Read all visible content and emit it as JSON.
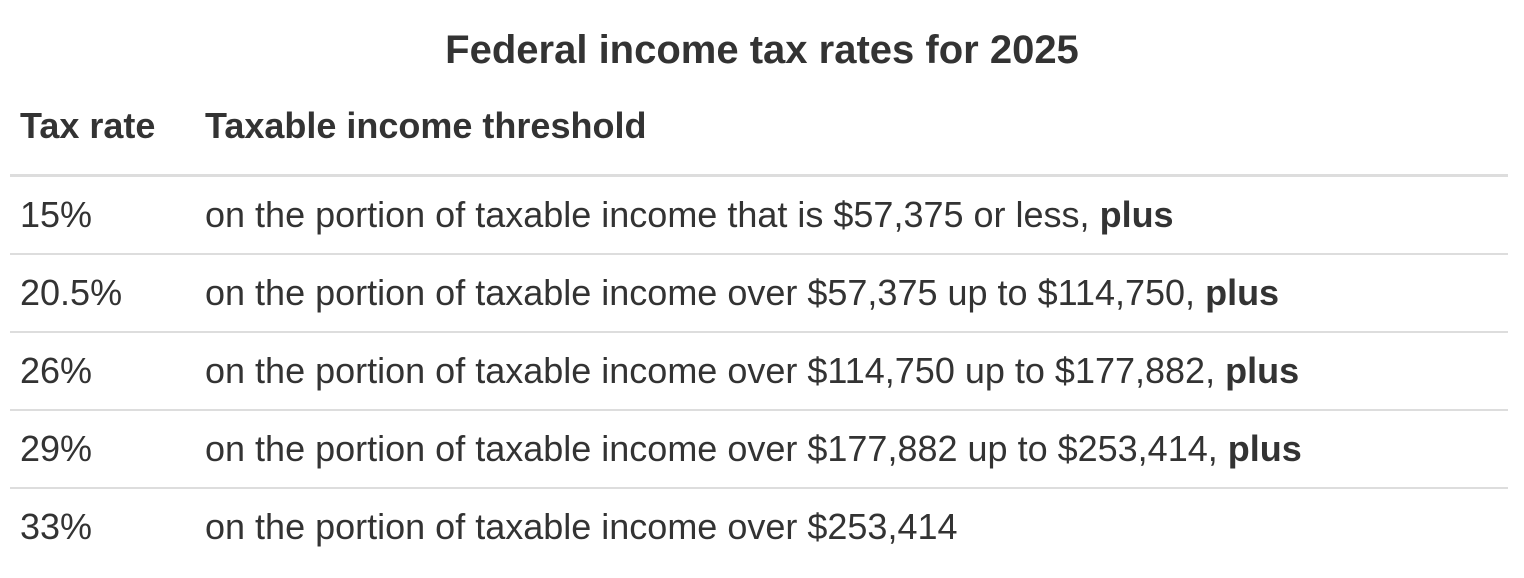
{
  "title": "Federal income tax rates for 2025",
  "table": {
    "headers": [
      "Tax rate",
      "Taxable income threshold"
    ],
    "rows": [
      {
        "rate": "15%",
        "threshold": "on the portion of taxable income that is $57,375 or less,",
        "emphasis": "plus"
      },
      {
        "rate": "20.5%",
        "threshold": "on the portion of taxable income over $57,375 up to $114,750,",
        "emphasis": "plus"
      },
      {
        "rate": "26%",
        "threshold": "on the portion of taxable income over $114,750 up to $177,882,",
        "emphasis": "plus"
      },
      {
        "rate": "29%",
        "threshold": "on the portion of taxable income over $177,882 up to $253,414,",
        "emphasis": "plus"
      },
      {
        "rate": "33%",
        "threshold": "on the portion of taxable income over $253,414"
      }
    ]
  }
}
